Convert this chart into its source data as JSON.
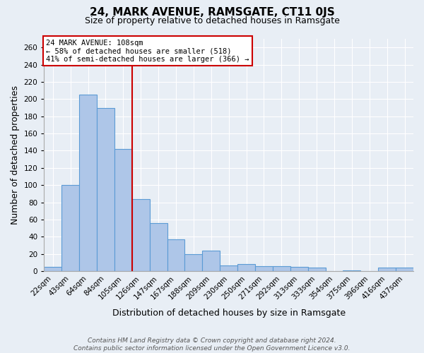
{
  "title": "24, MARK AVENUE, RAMSGATE, CT11 0JS",
  "subtitle": "Size of property relative to detached houses in Ramsgate",
  "xlabel": "Distribution of detached houses by size in Ramsgate",
  "ylabel": "Number of detached properties",
  "bar_labels": [
    "22sqm",
    "43sqm",
    "64sqm",
    "84sqm",
    "105sqm",
    "126sqm",
    "147sqm",
    "167sqm",
    "188sqm",
    "209sqm",
    "230sqm",
    "250sqm",
    "271sqm",
    "292sqm",
    "313sqm",
    "333sqm",
    "354sqm",
    "375sqm",
    "396sqm",
    "416sqm",
    "437sqm"
  ],
  "bar_values": [
    5,
    100,
    205,
    190,
    142,
    84,
    56,
    37,
    20,
    24,
    7,
    8,
    6,
    6,
    5,
    4,
    0,
    1,
    0,
    4,
    4
  ],
  "bar_color": "#aec6e8",
  "bar_edge_color": "#5b9bd5",
  "ylim": [
    0,
    270
  ],
  "yticks": [
    0,
    20,
    40,
    60,
    80,
    100,
    120,
    140,
    160,
    180,
    200,
    220,
    240,
    260
  ],
  "marker_label_line1": "24 MARK AVENUE: 108sqm",
  "marker_label_line2": "← 58% of detached houses are smaller (518)",
  "marker_label_line3": "41% of semi-detached houses are larger (366) →",
  "red_line_bar_index": 4,
  "red_line_color": "#cc0000",
  "annotation_box_color": "#ffffff",
  "annotation_box_edge": "#cc0000",
  "footer_line1": "Contains HM Land Registry data © Crown copyright and database right 2024.",
  "footer_line2": "Contains public sector information licensed under the Open Government Licence v3.0.",
  "background_color": "#e8eef5",
  "plot_bg_color": "#e8eef5",
  "grid_color": "#ffffff",
  "title_fontsize": 11,
  "subtitle_fontsize": 9,
  "axis_label_fontsize": 9,
  "tick_fontsize": 7.5,
  "footer_fontsize": 6.5
}
